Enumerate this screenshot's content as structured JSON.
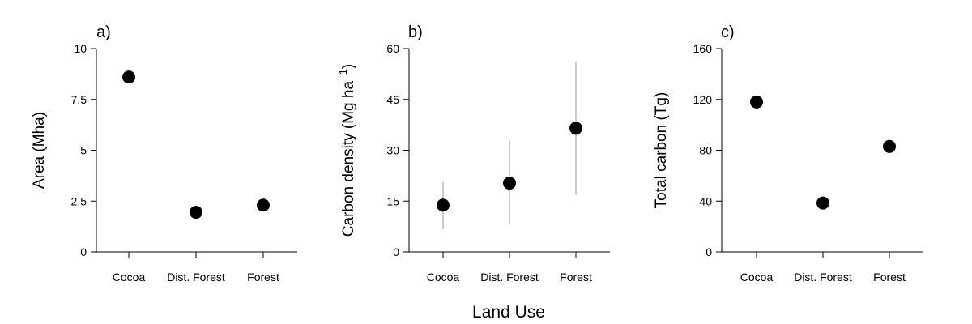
{
  "figure": {
    "common_xlabel": "Land Use"
  },
  "chart_data": [
    {
      "type": "scatter",
      "panel_label": "a)",
      "title": "",
      "xlabel": "",
      "ylabel": "Area (Mha)",
      "ylabel_superscript": "",
      "ylabel_suffix": "",
      "categories": [
        "Cocoa",
        "Dist. Forest",
        "Forest"
      ],
      "values": [
        8.6,
        1.95,
        2.3
      ],
      "errors": null,
      "ylim": [
        0,
        10
      ],
      "yticks": [
        0,
        2.5,
        5,
        7.5,
        10
      ],
      "ytick_labels": [
        "0",
        "2.5",
        "5",
        "7.5",
        "10"
      ],
      "grid": false,
      "legend": null,
      "colors": {
        "point": "#000000"
      }
    },
    {
      "type": "scatter",
      "panel_label": "b)",
      "title": "",
      "xlabel": "",
      "ylabel": "Carbon density (Mg ha",
      "ylabel_superscript": "−1",
      "ylabel_suffix": ")",
      "categories": [
        "Cocoa",
        "Dist. Forest",
        "Forest"
      ],
      "values": [
        13.8,
        20.3,
        36.5
      ],
      "errors": [
        [
          6.8,
          20.7
        ],
        [
          8.0,
          32.8
        ],
        [
          16.8,
          56.2
        ]
      ],
      "ylim": [
        0,
        60
      ],
      "yticks": [
        0,
        15,
        30,
        45,
        60
      ],
      "ytick_labels": [
        "0",
        "15",
        "30",
        "45",
        "60"
      ],
      "grid": false,
      "legend": null,
      "colors": {
        "point": "#000000",
        "errorbar": "#bbbbbb"
      }
    },
    {
      "type": "scatter",
      "panel_label": "c)",
      "title": "",
      "xlabel": "",
      "ylabel": "Total carbon (Tg)",
      "ylabel_superscript": "",
      "ylabel_suffix": "",
      "categories": [
        "Cocoa",
        "Dist. Forest",
        "Forest"
      ],
      "values": [
        118,
        38.5,
        83
      ],
      "errors": null,
      "ylim": [
        0,
        160
      ],
      "yticks": [
        0,
        40,
        80,
        120,
        160
      ],
      "ytick_labels": [
        "0",
        "40",
        "80",
        "120",
        "160"
      ],
      "grid": false,
      "legend": null,
      "colors": {
        "point": "#000000"
      }
    }
  ]
}
